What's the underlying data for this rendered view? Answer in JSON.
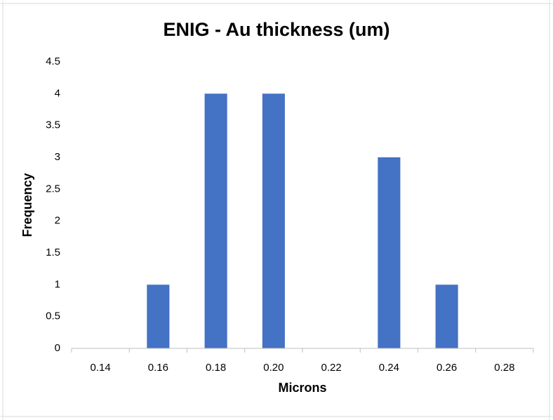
{
  "chart_data": {
    "type": "bar",
    "title": "ENIG - Au thickness (um)",
    "x_label": "Microns",
    "y_label": "Frequency",
    "categories": [
      "0.14",
      "0.16",
      "0.18",
      "0.20",
      "0.22",
      "0.24",
      "0.26",
      "0.28"
    ],
    "values": [
      0,
      1,
      4,
      4,
      0,
      3,
      1,
      0
    ],
    "color": "#4472c4",
    "ylim": [
      0,
      4.5
    ],
    "yticks": [
      0,
      0.5,
      1,
      1.5,
      2,
      2.5,
      3,
      3.5,
      4,
      4.5
    ],
    "grid": false
  }
}
